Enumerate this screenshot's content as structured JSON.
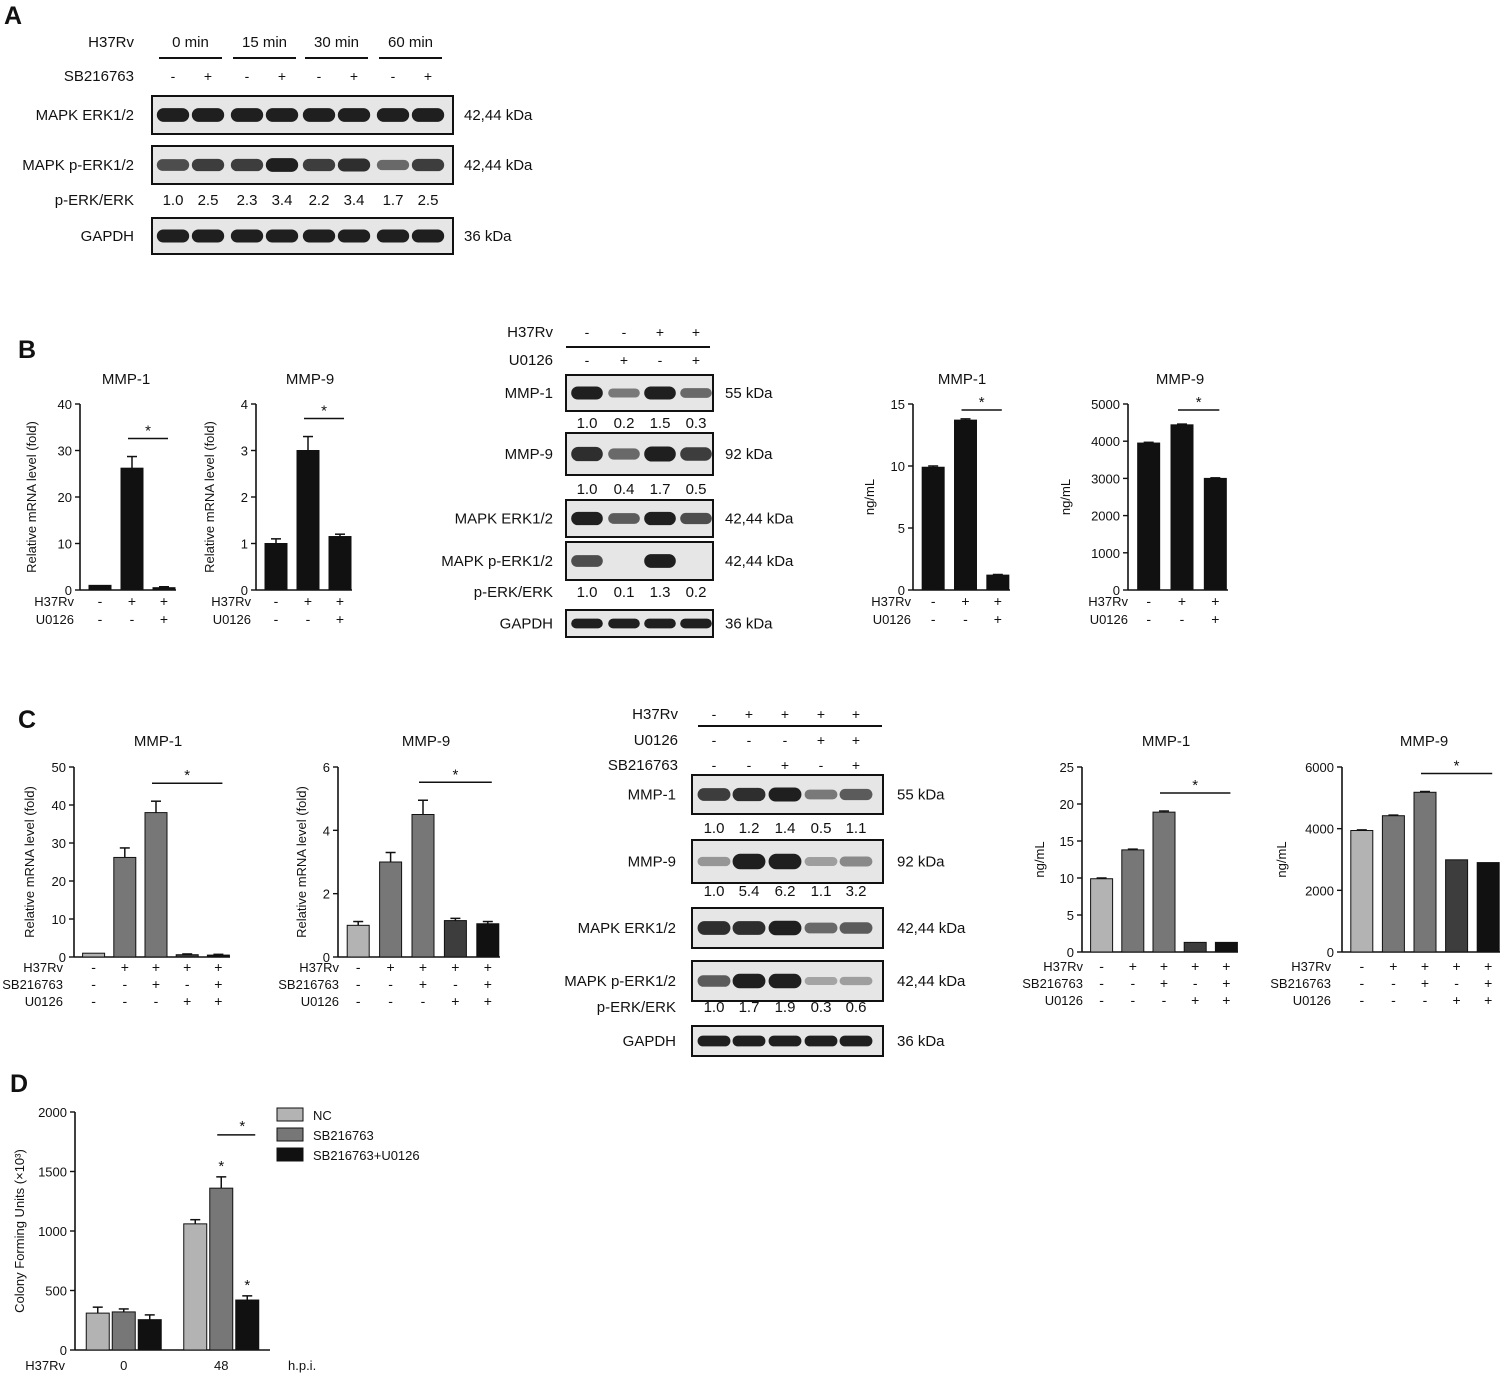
{
  "panel_labels": [
    "A",
    "B",
    "C",
    "D"
  ],
  "colors": {
    "black": "#111111",
    "dark_gray": "#3d3d3d",
    "mid_gray": "#777777",
    "light_gray": "#b3b3b3",
    "blot_band": "#1f1f1f",
    "blot_bg": "#e6e6e6"
  },
  "blots": [
    {
      "panel": "A",
      "header": [
        {
          "name": "H37Rv",
          "groups": [
            "0  min",
            "15  min",
            "30  min",
            "60  min"
          ]
        },
        {
          "name": "SB216763",
          "signs": [
            "-",
            "+",
            "-",
            "+",
            "-",
            "+",
            "-",
            "+"
          ]
        }
      ],
      "rows": [
        {
          "type": "blot",
          "label": "MAPK ERK1/2",
          "kda": "42,44 kDa",
          "intensity": [
            1,
            1,
            1,
            1,
            1,
            1,
            1,
            1
          ]
        },
        {
          "type": "blot",
          "label": "MAPK p-ERK1/2",
          "kda": "42,44 kDa",
          "intensity": [
            0.7,
            0.8,
            0.8,
            1.0,
            0.8,
            0.9,
            0.5,
            0.8
          ]
        },
        {
          "type": "ratio",
          "label": "p-ERK/ERK",
          "values": [
            "1.0",
            "2.5",
            "2.3",
            "3.4",
            "2.2",
            "3.4",
            "1.7",
            "2.5"
          ]
        },
        {
          "type": "blot",
          "label": "GAPDH",
          "kda": "36 kDa",
          "intensity": [
            1,
            1,
            1,
            1,
            1,
            1,
            1,
            1
          ]
        }
      ]
    },
    {
      "panel": "B",
      "header": [
        {
          "name": "H37Rv",
          "signs": [
            "-",
            "-",
            "+",
            "+"
          ]
        },
        {
          "name": "U0126",
          "signs": [
            "-",
            "+",
            "-",
            "+"
          ]
        }
      ],
      "rows": [
        {
          "type": "blot",
          "label": "MMP-1",
          "kda": "55 kDa",
          "intensity": [
            1.0,
            0.4,
            1.0,
            0.5
          ]
        },
        {
          "type": "ratio",
          "label": "",
          "values": [
            "1.0",
            "0.2",
            "1.5",
            "0.3"
          ]
        },
        {
          "type": "blot",
          "label": "MMP-9",
          "kda": "92 kDa",
          "intensity": [
            0.9,
            0.5,
            1.0,
            0.8
          ]
        },
        {
          "type": "ratio",
          "label": "",
          "values": [
            "1.0",
            "0.4",
            "1.7",
            "0.5"
          ]
        },
        {
          "type": "blot",
          "label": "MAPK ERK1/2",
          "kda": "42,44 kDa",
          "intensity": [
            1.0,
            0.6,
            1.0,
            0.7
          ]
        },
        {
          "type": "blot",
          "label": "MAPK p-ERK1/2",
          "kda": "42,44 kDa",
          "intensity": [
            0.7,
            0.0,
            1.0,
            0.0
          ]
        },
        {
          "type": "ratio",
          "label": "p-ERK/ERK",
          "values": [
            "1.0",
            "0.1",
            "1.3",
            "0.2"
          ]
        },
        {
          "type": "blot",
          "label": "GAPDH",
          "kda": "36 kDa",
          "intensity": [
            1,
            1,
            1,
            1
          ]
        }
      ]
    },
    {
      "panel": "C",
      "header": [
        {
          "name": "H37Rv",
          "signs": [
            "-",
            "+",
            "+",
            "+",
            "+"
          ]
        },
        {
          "name": "U0126",
          "signs": [
            "-",
            "-",
            "-",
            "+",
            "+"
          ]
        },
        {
          "name": "SB216763",
          "signs": [
            "-",
            "-",
            "+",
            "-",
            "+"
          ]
        }
      ],
      "rows": [
        {
          "type": "blot",
          "label": "MMP-1",
          "kda": "55 kDa",
          "intensity": [
            0.8,
            0.9,
            1.0,
            0.4,
            0.6
          ]
        },
        {
          "type": "ratio",
          "label": "",
          "values": [
            "1.0",
            "1.2",
            "1.4",
            "0.5",
            "1.1"
          ]
        },
        {
          "type": "blot",
          "label": "MMP-9",
          "kda": "92 kDa",
          "intensity": [
            0.2,
            1.0,
            1.0,
            0.15,
            0.3
          ]
        },
        {
          "type": "ratio",
          "label": "",
          "values": [
            "1.0",
            "5.4",
            "6.2",
            "1.1",
            "3.2"
          ]
        },
        {
          "type": "blot",
          "label": "MAPK ERK1/2",
          "kda": "42,44 kDa",
          "intensity": [
            0.9,
            0.9,
            1.0,
            0.5,
            0.6
          ]
        },
        {
          "type": "blot",
          "label": "MAPK p-ERK1/2",
          "kda": "42,44 kDa",
          "intensity": [
            0.6,
            1.0,
            1.0,
            0.1,
            0.15
          ]
        },
        {
          "type": "ratio",
          "label": "p-ERK/ERK",
          "values": [
            "1.0",
            "1.7",
            "1.9",
            "0.3",
            "0.6"
          ]
        },
        {
          "type": "blot",
          "label": "GAPDH",
          "kda": "36 kDa",
          "intensity": [
            1,
            1,
            1,
            1,
            1
          ]
        }
      ]
    }
  ],
  "chart_data": [
    {
      "id": "B_mRNA_MMP1",
      "panel": "B",
      "type": "bar",
      "title": "MMP-1",
      "ylabel": "Relative mRNA level (fold)",
      "ylim": [
        0,
        40
      ],
      "yticks": [
        0,
        10,
        20,
        30,
        40
      ],
      "values": [
        1.0,
        26.2,
        0.5
      ],
      "errors": [
        0,
        2.5,
        0.2
      ],
      "colors": [
        "black",
        "black",
        "black"
      ],
      "conditions": [
        {
          "name": "H37Rv",
          "signs": [
            "-",
            "+",
            "+"
          ]
        },
        {
          "name": "U0126",
          "signs": [
            "-",
            "-",
            "+"
          ]
        }
      ],
      "significance": [
        {
          "from": 1,
          "to": 2,
          "label": "*"
        }
      ]
    },
    {
      "id": "B_mRNA_MMP9",
      "panel": "B",
      "type": "bar",
      "title": "MMP-9",
      "ylabel": "Relative mRNA level (fold)",
      "ylim": [
        0,
        4
      ],
      "yticks": [
        0,
        1,
        2,
        3,
        4
      ],
      "values": [
        1.0,
        3.0,
        1.15
      ],
      "errors": [
        0.1,
        0.3,
        0.05
      ],
      "colors": [
        "black",
        "black",
        "black"
      ],
      "conditions": [
        {
          "name": "H37Rv",
          "signs": [
            "-",
            "+",
            "+"
          ]
        },
        {
          "name": "U0126",
          "signs": [
            "-",
            "-",
            "+"
          ]
        }
      ],
      "significance": [
        {
          "from": 1,
          "to": 2,
          "label": "*"
        }
      ]
    },
    {
      "id": "B_elisa_MMP1",
      "panel": "B",
      "type": "bar",
      "title": "MMP-1",
      "ylabel": "ng/mL",
      "ylim": [
        0,
        15
      ],
      "yticks": [
        0,
        5,
        10,
        15
      ],
      "values": [
        9.9,
        13.7,
        1.2
      ],
      "errors": [
        0.1,
        0.1,
        0.05
      ],
      "colors": [
        "black",
        "black",
        "black"
      ],
      "conditions": [
        {
          "name": "H37Rv",
          "signs": [
            "-",
            "+",
            "+"
          ]
        },
        {
          "name": "U0126",
          "signs": [
            "-",
            "-",
            "+"
          ]
        }
      ],
      "significance": [
        {
          "from": 1,
          "to": 2,
          "label": "*"
        }
      ]
    },
    {
      "id": "B_elisa_MMP9",
      "panel": "B",
      "type": "bar",
      "title": "MMP-9",
      "ylabel": "ng/mL",
      "ylim": [
        0,
        5000
      ],
      "yticks": [
        0,
        1000,
        2000,
        3000,
        4000,
        5000
      ],
      "values": [
        3950,
        4440,
        3000
      ],
      "errors": [
        20,
        20,
        15
      ],
      "colors": [
        "black",
        "black",
        "black"
      ],
      "conditions": [
        {
          "name": "H37Rv",
          "signs": [
            "-",
            "+",
            "+"
          ]
        },
        {
          "name": "U0126",
          "signs": [
            "-",
            "-",
            "+"
          ]
        }
      ],
      "significance": [
        {
          "from": 1,
          "to": 2,
          "label": "*"
        }
      ]
    },
    {
      "id": "C_mRNA_MMP1",
      "panel": "C",
      "type": "bar",
      "title": "MMP-1",
      "ylabel": "Relative mRNA level (fold)",
      "ylim": [
        0,
        50
      ],
      "yticks": [
        0,
        10,
        20,
        30,
        40,
        50
      ],
      "values": [
        1.0,
        26.2,
        38.0,
        0.6,
        0.5
      ],
      "errors": [
        0,
        2.5,
        3.0,
        0.2,
        0.2
      ],
      "colors": [
        "light_gray",
        "mid_gray",
        "mid_gray",
        "dark_gray",
        "black"
      ],
      "conditions": [
        {
          "name": "H37Rv",
          "signs": [
            "-",
            "+",
            "+",
            "+",
            "+"
          ]
        },
        {
          "name": "SB216763",
          "signs": [
            "-",
            "-",
            "+",
            "-",
            "+"
          ]
        },
        {
          "name": "U0126",
          "signs": [
            "-",
            "-",
            "-",
            "+",
            "+"
          ]
        }
      ],
      "significance": [
        {
          "from": 2,
          "to": 4,
          "label": "*"
        }
      ]
    },
    {
      "id": "C_mRNA_MMP9",
      "panel": "C",
      "type": "bar",
      "title": "MMP-9",
      "ylabel": "Relative mRNA level (fold)",
      "ylim": [
        0,
        6
      ],
      "yticks": [
        0,
        2,
        4,
        6
      ],
      "values": [
        1.0,
        3.0,
        4.5,
        1.15,
        1.05
      ],
      "errors": [
        0.12,
        0.3,
        0.45,
        0.07,
        0.07
      ],
      "colors": [
        "light_gray",
        "mid_gray",
        "mid_gray",
        "dark_gray",
        "black"
      ],
      "conditions": [
        {
          "name": "H37Rv",
          "signs": [
            "-",
            "+",
            "+",
            "+",
            "+"
          ]
        },
        {
          "name": "SB216763",
          "signs": [
            "-",
            "-",
            "+",
            "-",
            "+"
          ]
        },
        {
          "name": "U0126",
          "signs": [
            "-",
            "-",
            "-",
            "+",
            "+"
          ]
        }
      ],
      "significance": [
        {
          "from": 2,
          "to": 4,
          "label": "*"
        }
      ]
    },
    {
      "id": "C_elisa_MMP1",
      "panel": "C",
      "type": "bar",
      "title": "MMP-1",
      "ylabel": "ng/mL",
      "ylim": [
        0,
        25
      ],
      "yticks": [
        0,
        5,
        10,
        15,
        20,
        25
      ],
      "values": [
        9.9,
        13.8,
        18.9,
        1.3,
        1.3
      ],
      "errors": [
        0.1,
        0.1,
        0.15,
        0.05,
        0.05
      ],
      "colors": [
        "light_gray",
        "mid_gray",
        "mid_gray",
        "dark_gray",
        "black"
      ],
      "conditions": [
        {
          "name": "H37Rv",
          "signs": [
            "-",
            "+",
            "+",
            "+",
            "+"
          ]
        },
        {
          "name": "SB216763",
          "signs": [
            "-",
            "-",
            "+",
            "-",
            "+"
          ]
        },
        {
          "name": "U0126",
          "signs": [
            "-",
            "-",
            "-",
            "+",
            "+"
          ]
        }
      ],
      "significance": [
        {
          "from": 2,
          "to": 4,
          "label": "*"
        }
      ]
    },
    {
      "id": "C_elisa_MMP9",
      "panel": "C",
      "type": "bar",
      "title": "MMP-9",
      "ylabel": "ng/mL",
      "ylim": [
        0,
        6000
      ],
      "yticks": [
        0,
        2000,
        4000,
        6000
      ],
      "values": [
        3940,
        4420,
        5180,
        2990,
        2900
      ],
      "errors": [
        20,
        20,
        25,
        15,
        15
      ],
      "colors": [
        "light_gray",
        "mid_gray",
        "mid_gray",
        "dark_gray",
        "black"
      ],
      "conditions": [
        {
          "name": "H37Rv",
          "signs": [
            "-",
            "+",
            "+",
            "+",
            "+"
          ]
        },
        {
          "name": "SB216763",
          "signs": [
            "-",
            "-",
            "+",
            "-",
            "+"
          ]
        },
        {
          "name": "U0126",
          "signs": [
            "-",
            "-",
            "-",
            "+",
            "+"
          ]
        }
      ],
      "significance": [
        {
          "from": 2,
          "to": 4,
          "label": "*"
        }
      ]
    },
    {
      "id": "D_cfu",
      "panel": "D",
      "type": "bar",
      "title": "",
      "ylabel": "Colony Forming Units (×10³)",
      "ylim": [
        0,
        2000
      ],
      "yticks": [
        0,
        500,
        1000,
        1500,
        2000
      ],
      "xlabel_prefix": "H37Rv",
      "xlabel_suffix": "h.p.i.",
      "categories": [
        "0",
        "48"
      ],
      "series": [
        {
          "name": "NC",
          "color": "light_gray",
          "values": [
            310,
            1060
          ],
          "errors": [
            50,
            35
          ]
        },
        {
          "name": "SB216763",
          "color": "mid_gray",
          "values": [
            320,
            1360
          ],
          "errors": [
            25,
            95
          ]
        },
        {
          "name": "SB216763+U0126",
          "color": "black",
          "values": [
            255,
            420
          ],
          "errors": [
            40,
            35
          ]
        }
      ],
      "point_marks": [
        {
          "category": 1,
          "series": 1,
          "label": "*"
        },
        {
          "category": 1,
          "series": 2,
          "label": "*"
        }
      ],
      "significance": [
        {
          "category": 1,
          "from_series": 1,
          "to_series": 2,
          "label": "*"
        }
      ],
      "legend": "top-right"
    }
  ]
}
